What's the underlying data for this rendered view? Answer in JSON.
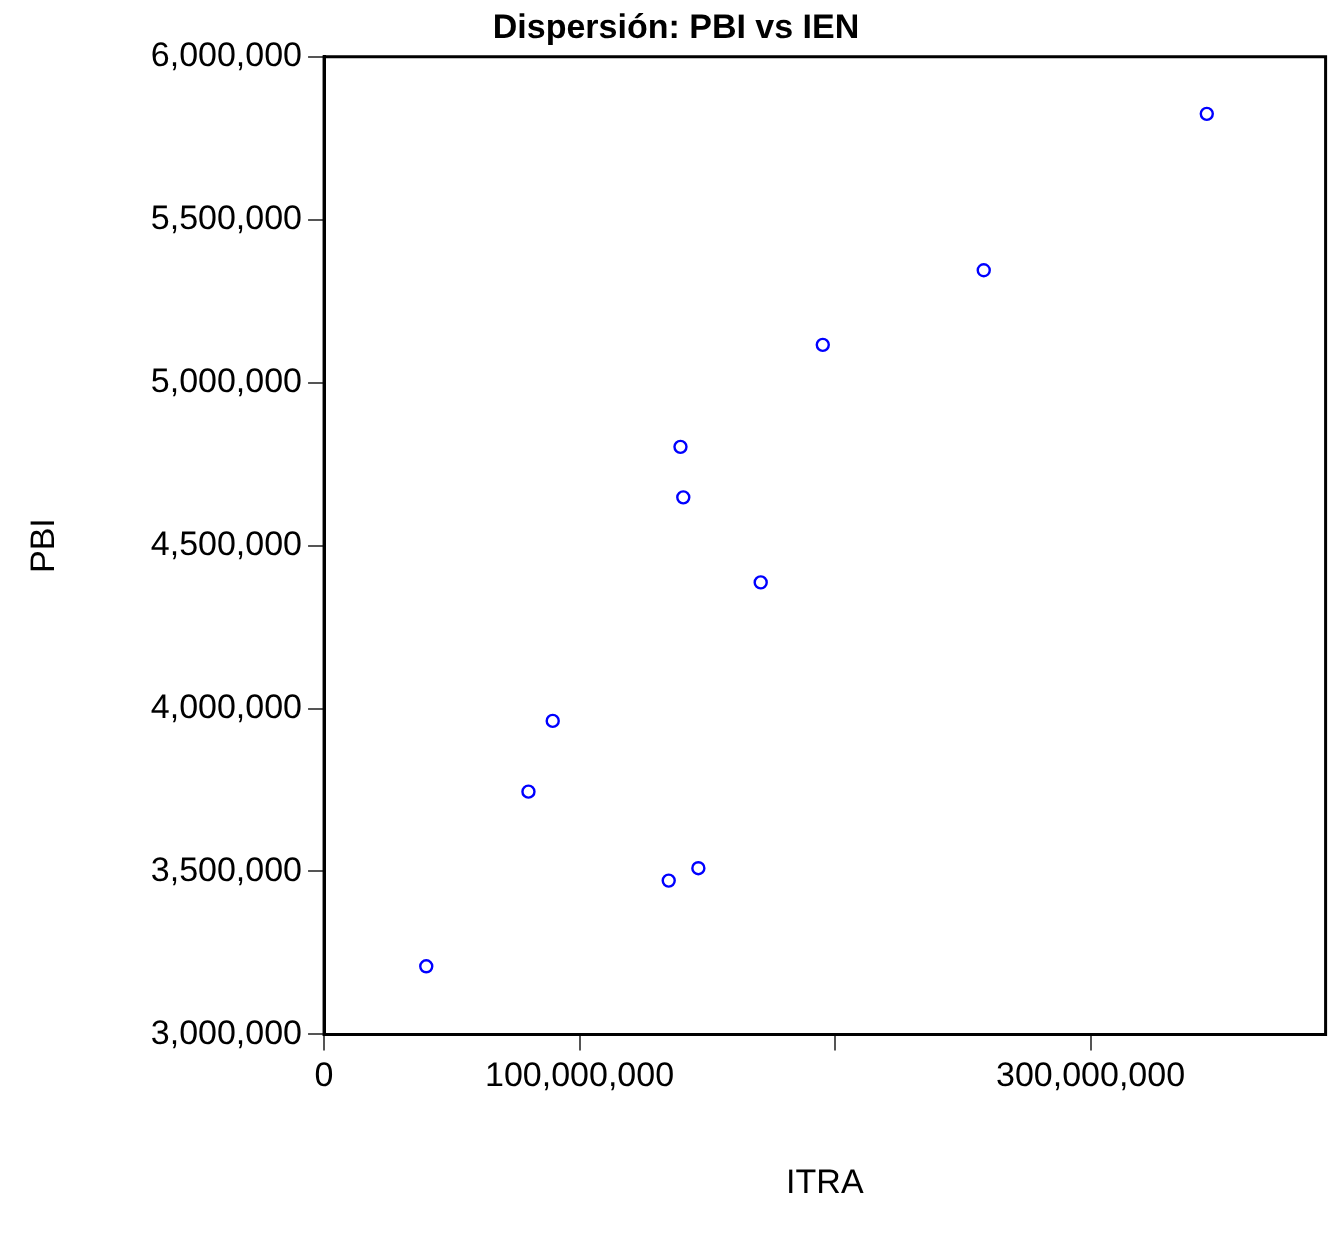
{
  "chart_data": {
    "type": "scatter",
    "title": "Dispersión: PBI vs IEN",
    "xlabel": "ITRA",
    "ylabel": "PBI",
    "marker": "circle",
    "grid": false,
    "series": [
      {
        "color": "#0000ff",
        "x": [
          40000000,
          80000000,
          89500000,
          134900000,
          146500000,
          139500000,
          140600000,
          170900000,
          195200000,
          258200000,
          345500000
        ],
        "values": [
          3209000,
          3745000,
          3962000,
          3472000,
          3510000,
          4803000,
          4648000,
          4387000,
          5116000,
          5345000,
          5825000
        ]
      }
    ],
    "xlim": [
      0,
      392000000
    ],
    "xticks": [
      0,
      {
        "value": 100000000,
        "label": "100,000,000"
      },
      {
        "value": 200000000,
        "label": null
      },
      {
        "value": 300000000,
        "label": "300,000,000"
      }
    ],
    "ylim": [
      3000000,
      6000000
    ],
    "yticks": [
      {
        "value": 3000000,
        "label": "3,000,000"
      },
      {
        "value": 3500000,
        "label": "3,500,000"
      },
      {
        "value": 4000000,
        "label": "4,000,000"
      },
      {
        "value": 4500000,
        "label": "4,500,000"
      },
      {
        "value": 5000000,
        "label": "5,000,000"
      },
      {
        "value": 5500000,
        "label": "5,500,000"
      },
      {
        "value": 6000000,
        "label": "6,000,000"
      }
    ]
  }
}
